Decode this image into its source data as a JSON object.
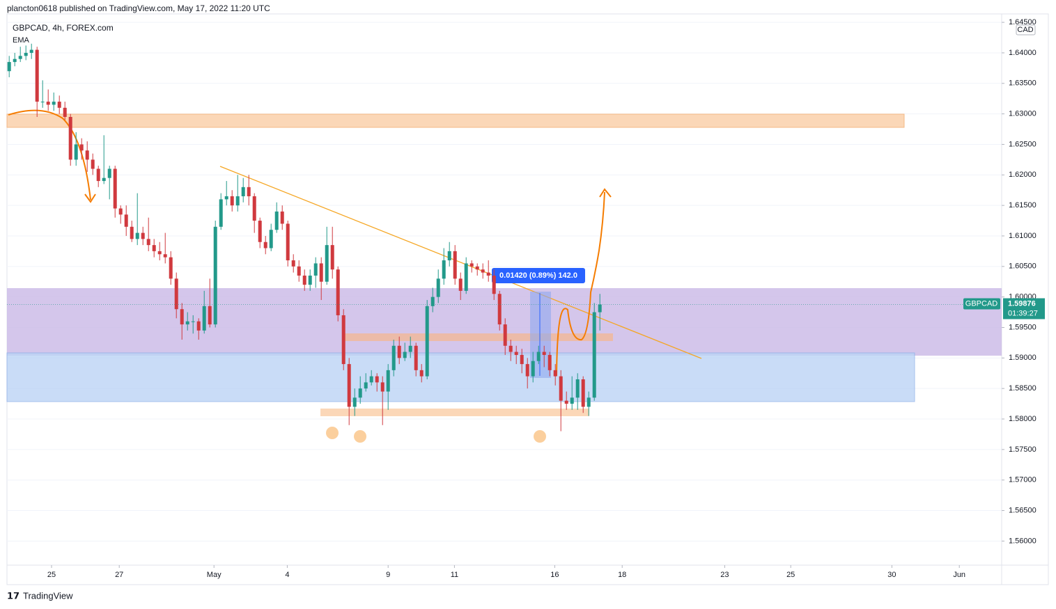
{
  "header": {
    "publisher": "plancton0618 published on TradingView.com, May 17, 2022 11:20 UTC",
    "footer": "TradingView"
  },
  "chart_data": {
    "type": "candlestick",
    "title": "GBPCAD, 4h, FOREX.com",
    "indicator": "EMA",
    "currency": "CAD",
    "symbol": "GBPCAD",
    "last_price": 1.59876,
    "countdown": "01:39:27",
    "measure_label": "0.01420 (0.89%) 142.0",
    "up_color": "#22998a",
    "down_color": "#d0393e",
    "ylim": [
      1.55605,
      1.64638
    ],
    "xlim": [
      -0.4,
      178.1
    ],
    "yticks": [
      {
        "value": 1.645,
        "label": "1.64500"
      },
      {
        "value": 1.64,
        "label": "1.64000"
      },
      {
        "value": 1.635,
        "label": "1.63500"
      },
      {
        "value": 1.63,
        "label": "1.63000"
      },
      {
        "value": 1.625,
        "label": "1.62500"
      },
      {
        "value": 1.62,
        "label": "1.62000"
      },
      {
        "value": 1.615,
        "label": "1.61500"
      },
      {
        "value": 1.61,
        "label": "1.61000"
      },
      {
        "value": 1.605,
        "label": "1.60500"
      },
      {
        "value": 1.6,
        "label": "1.60000"
      },
      {
        "value": 1.595,
        "label": "1.59500"
      },
      {
        "value": 1.59,
        "label": "1.59000"
      },
      {
        "value": 1.585,
        "label": "1.58500"
      },
      {
        "value": 1.58,
        "label": "1.58000"
      },
      {
        "value": 1.575,
        "label": "1.57500"
      },
      {
        "value": 1.57,
        "label": "1.57000"
      },
      {
        "value": 1.565,
        "label": "1.56500"
      },
      {
        "value": 1.56,
        "label": "1.56000"
      }
    ],
    "xticks": [
      {
        "value": 7.6,
        "label": "25"
      },
      {
        "value": 19.75,
        "label": "27"
      },
      {
        "value": 36.75,
        "label": "May"
      },
      {
        "value": 49.9,
        "label": "4"
      },
      {
        "value": 68,
        "label": "9"
      },
      {
        "value": 79.9,
        "label": "11"
      },
      {
        "value": 97.9,
        "label": "16"
      },
      {
        "value": 110,
        "label": "18"
      },
      {
        "value": 128.4,
        "label": "23"
      },
      {
        "value": 140.25,
        "label": "25"
      },
      {
        "value": 158.4,
        "label": "30"
      },
      {
        "value": 170.5,
        "label": "Jun"
      }
    ],
    "open": [
      1.637,
      1.6385,
      1.639,
      1.6395,
      1.64,
      1.6405,
      1.632,
      1.632,
      1.6315,
      1.632,
      1.631,
      1.6295,
      1.6225,
      1.625,
      1.624,
      1.6225,
      1.621,
      1.619,
      1.6195,
      1.621,
      1.6145,
      1.6135,
      1.6115,
      1.6095,
      1.6105,
      1.6095,
      1.6085,
      1.6075,
      1.607,
      1.6065,
      1.603,
      1.598,
      1.5955,
      1.596,
      1.596,
      1.5945,
      1.5985,
      1.5955,
      1.6115,
      1.616,
      1.6165,
      1.615,
      1.6165,
      1.618,
      1.6165,
      1.6125,
      1.609,
      1.608,
      1.611,
      1.614,
      1.612,
      1.606,
      1.605,
      1.6035,
      1.602,
      1.6035,
      1.6055,
      1.6025,
      1.6085,
      1.6045,
      1.597,
      1.589,
      1.582,
      1.5835,
      1.585,
      1.586,
      1.587,
      1.586,
      1.5845,
      1.588,
      1.592,
      1.59,
      1.591,
      1.592,
      1.588,
      1.587,
      1.5985,
      1.6,
      1.603,
      1.606,
      1.6075,
      1.603,
      1.601,
      1.6055,
      1.605,
      1.6045,
      1.604,
      1.6035,
      1.6005,
      1.5955,
      1.592,
      1.591,
      1.5905,
      1.589,
      1.587,
      1.5895,
      1.591,
      1.5905,
      1.588,
      1.587,
      1.583,
      1.5825,
      1.5835,
      1.5865,
      1.582,
      1.5835,
      1.5975
    ],
    "high": [
      1.6395,
      1.64,
      1.641,
      1.6412,
      1.6415,
      1.641,
      1.6355,
      1.634,
      1.6335,
      1.633,
      1.632,
      1.63,
      1.627,
      1.626,
      1.6255,
      1.6235,
      1.6215,
      1.6265,
      1.6215,
      1.6215,
      1.615,
      1.615,
      1.6125,
      1.617,
      1.6115,
      1.613,
      1.6095,
      1.609,
      1.6105,
      1.6075,
      1.604,
      1.599,
      1.5975,
      1.597,
      1.5965,
      1.601,
      1.603,
      1.6125,
      1.617,
      1.619,
      1.6175,
      1.62,
      1.6195,
      1.62,
      1.617,
      1.613,
      1.61,
      1.612,
      1.6155,
      1.615,
      1.6125,
      1.607,
      1.606,
      1.6045,
      1.6045,
      1.6065,
      1.6065,
      1.6115,
      1.6115,
      1.605,
      1.598,
      1.59,
      1.585,
      1.587,
      1.5875,
      1.588,
      1.5875,
      1.587,
      1.589,
      1.593,
      1.5935,
      1.5925,
      1.5935,
      1.5925,
      1.589,
      1.5995,
      1.6015,
      1.6045,
      1.608,
      1.609,
      1.6085,
      1.604,
      1.6065,
      1.606,
      1.6055,
      1.6055,
      1.606,
      1.6045,
      1.601,
      1.5965,
      1.593,
      1.592,
      1.5915,
      1.59,
      1.591,
      1.592,
      1.592,
      1.591,
      1.589,
      1.588,
      1.5845,
      1.587,
      1.5875,
      1.587,
      1.5845,
      1.599,
      1.6005
    ],
    "low": [
      1.636,
      1.6378,
      1.6385,
      1.6388,
      1.639,
      1.6295,
      1.631,
      1.6305,
      1.6305,
      1.63,
      1.629,
      1.6215,
      1.6215,
      1.6225,
      1.6205,
      1.62,
      1.618,
      1.6185,
      1.616,
      1.613,
      1.612,
      1.61,
      1.609,
      1.6085,
      1.6085,
      1.6075,
      1.6065,
      1.606,
      1.6055,
      1.602,
      1.5965,
      1.593,
      1.5945,
      1.594,
      1.593,
      1.594,
      1.595,
      1.595,
      1.611,
      1.615,
      1.614,
      1.614,
      1.6155,
      1.615,
      1.6105,
      1.608,
      1.607,
      1.6075,
      1.6105,
      1.611,
      1.605,
      1.604,
      1.6025,
      1.601,
      1.601,
      1.6015,
      1.5995,
      1.602,
      1.603,
      1.596,
      1.588,
      1.579,
      1.5805,
      1.5825,
      1.5845,
      1.5855,
      1.5845,
      1.579,
      1.5815,
      1.587,
      1.589,
      1.5895,
      1.59,
      1.587,
      1.586,
      1.5865,
      1.5975,
      1.599,
      1.602,
      1.605,
      1.602,
      1.5995,
      1.6005,
      1.604,
      1.6035,
      1.603,
      1.6025,
      1.5995,
      1.5945,
      1.5905,
      1.5895,
      1.589,
      1.5875,
      1.585,
      1.586,
      1.589,
      1.5885,
      1.587,
      1.5855,
      1.578,
      1.5815,
      1.5815,
      1.5815,
      1.581,
      1.5805,
      1.583,
      1.5945
    ],
    "close": [
      1.6385,
      1.639,
      1.6395,
      1.64,
      1.6405,
      1.632,
      1.632,
      1.6315,
      1.632,
      1.631,
      1.6295,
      1.6225,
      1.625,
      1.624,
      1.6225,
      1.621,
      1.619,
      1.6195,
      1.621,
      1.6145,
      1.6135,
      1.6115,
      1.6095,
      1.6105,
      1.6095,
      1.6085,
      1.6075,
      1.607,
      1.6065,
      1.603,
      1.598,
      1.5955,
      1.596,
      1.596,
      1.5945,
      1.5985,
      1.5955,
      1.6115,
      1.616,
      1.6165,
      1.615,
      1.6165,
      1.618,
      1.6165,
      1.6125,
      1.609,
      1.608,
      1.611,
      1.614,
      1.612,
      1.606,
      1.605,
      1.6035,
      1.602,
      1.6035,
      1.6055,
      1.6025,
      1.6085,
      1.6045,
      1.597,
      1.589,
      1.582,
      1.5835,
      1.585,
      1.586,
      1.587,
      1.586,
      1.5845,
      1.588,
      1.592,
      1.59,
      1.591,
      1.592,
      1.588,
      1.587,
      1.5985,
      1.6,
      1.603,
      1.606,
      1.6075,
      1.603,
      1.601,
      1.6055,
      1.605,
      1.6045,
      1.604,
      1.6035,
      1.6005,
      1.5955,
      1.592,
      1.591,
      1.5905,
      1.589,
      1.587,
      1.5895,
      1.591,
      1.5905,
      1.588,
      1.587,
      1.583,
      1.5825,
      1.5835,
      1.5865,
      1.582,
      1.5835,
      1.5975,
      1.59876
    ]
  }
}
